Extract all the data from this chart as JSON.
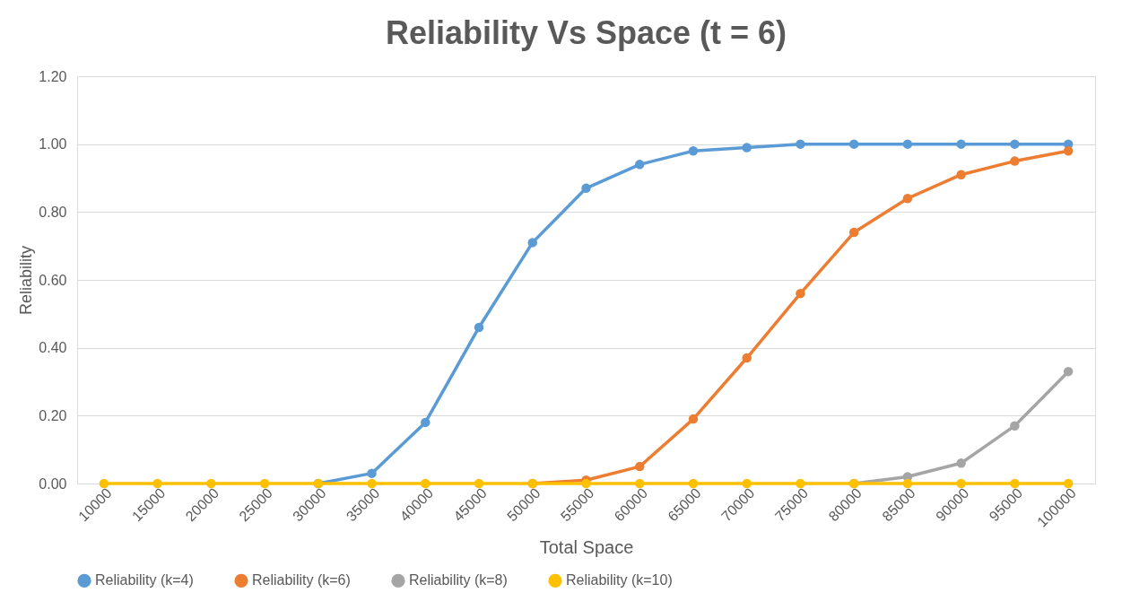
{
  "chart_data": {
    "type": "line",
    "title": "Reliability Vs Space (t = 6)",
    "xlabel": "Total Space",
    "ylabel": "Reliability",
    "categories": [
      "10000",
      "15000",
      "20000",
      "25000",
      "30000",
      "35000",
      "40000",
      "45000",
      "50000",
      "55000",
      "60000",
      "65000",
      "70000",
      "75000",
      "80000",
      "85000",
      "90000",
      "95000",
      "100000"
    ],
    "series": [
      {
        "name": "Reliability (k=4)",
        "color": "#5b9bd5",
        "values": [
          null,
          null,
          null,
          null,
          0,
          0.03,
          0.18,
          0.46,
          0.71,
          0.87,
          0.94,
          0.98,
          0.99,
          1.0,
          1.0,
          1.0,
          1.0,
          1.0,
          1.0
        ]
      },
      {
        "name": "Reliability (k=6)",
        "color": "#ed7d31",
        "values": [
          null,
          null,
          null,
          null,
          null,
          null,
          null,
          null,
          0,
          0.01,
          0.05,
          0.19,
          0.37,
          0.56,
          0.74,
          0.84,
          0.91,
          0.95,
          0.98
        ]
      },
      {
        "name": "Reliability (k=8)",
        "color": "#a5a5a5",
        "values": [
          null,
          null,
          null,
          null,
          null,
          null,
          null,
          null,
          null,
          null,
          null,
          null,
          null,
          null,
          0,
          0.02,
          0.06,
          0.17,
          0.33
        ]
      },
      {
        "name": "Reliability (k=10)",
        "color": "#ffc000",
        "values": [
          0,
          0,
          0,
          0,
          0,
          0,
          0,
          0,
          0,
          0,
          0,
          0,
          0,
          0,
          0,
          0,
          0,
          0,
          0
        ]
      }
    ],
    "ylim": [
      0,
      1.2
    ],
    "yticks": [
      {
        "value": 0,
        "label": "0.00"
      },
      {
        "value": 0.2,
        "label": "0.20"
      },
      {
        "value": 0.4,
        "label": "0.40"
      },
      {
        "value": 0.6,
        "label": "0.60"
      },
      {
        "value": 0.8,
        "label": "0.80"
      },
      {
        "value": 1.0,
        "label": "1.00"
      },
      {
        "value": 1.2,
        "label": "1.20"
      }
    ],
    "grid": "y",
    "legend": "bottom",
    "marker": "circle",
    "line_style": "solid"
  }
}
